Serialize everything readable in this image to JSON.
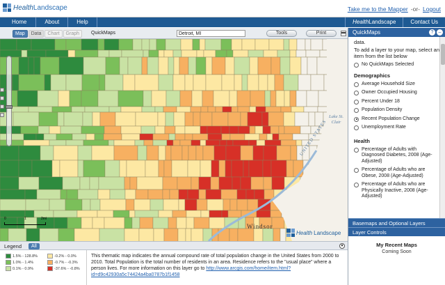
{
  "header": {
    "logo_a": "Health",
    "logo_b": "Landscape",
    "link_mapper": "Take me to the Mapper",
    "sep": "-or-",
    "link_logout": "Logout"
  },
  "nav": {
    "home": "Home",
    "about": "About",
    "help": "Help",
    "brand_a": "Health",
    "brand_b": "Landscape",
    "contact": "Contact Us"
  },
  "toolbar": {
    "tab_map": "Map",
    "tab_data": "Data",
    "tab_chart": "Chart",
    "tab_graph": "Graph",
    "quickmaps_label": "QuickMaps",
    "location_value": "Detroit, MI",
    "tools": "Tools",
    "print": "Print"
  },
  "map": {
    "city": "Windsor",
    "lake_1": "Lake St.",
    "lake_2": "Clair",
    "states": "UNITED STATES",
    "scale_0": "0",
    "scale_1": "1",
    "scale_2": "2mi",
    "watermark_a": "Health",
    "watermark_b": "Landscape",
    "colors": {
      "dark_green": "#2e8b3e",
      "green": "#7bbf5a",
      "light_green": "#c9e2a4",
      "light_yellow": "#fde8a3",
      "orange": "#f7b061",
      "red": "#d73027",
      "road": "#f4f1ea"
    }
  },
  "sidebar": {
    "title": "QuickMaps",
    "intro_top": "data.",
    "intro": "To add a layer to your map, select an item from the list below",
    "none_option": "No QuickMaps Selected",
    "demographics_title": "Demographics",
    "demographics": [
      {
        "label": "Average Household Size",
        "selected": false
      },
      {
        "label": "Owner Occupied Housing",
        "selected": false
      },
      {
        "label": "Percent Under 18",
        "selected": false
      },
      {
        "label": "Population Density",
        "selected": false
      },
      {
        "label": "Recent Population Change",
        "selected": true
      },
      {
        "label": "Unemployment Rate",
        "selected": false
      }
    ],
    "health_title": "Health",
    "health": [
      {
        "label": "Percentage of Adults with Diagnosed Diabetes, 2008 (Age-Adjusted)"
      },
      {
        "label": "Percentage of Adults who are Obese, 2008 (Age-Adjusted)"
      },
      {
        "label": "Percentage of Adults who are Physically Inactive, 2008 (Age-Adjusted)"
      }
    ],
    "basemaps": "Basemaps and Optional Layers",
    "layer_controls": "Layer Controls"
  },
  "legend": {
    "label": "Legend",
    "all": "All",
    "items": [
      {
        "text": "1.5% - 128.8%",
        "color": "#2e8b3e"
      },
      {
        "text": "-0.2% - 0.0%",
        "color": "#fde8a3"
      },
      {
        "text": "1.0% - 1.4%",
        "color": "#7bbf5a"
      },
      {
        "text": "-0.7% - -0.3%",
        "color": "#f7b061"
      },
      {
        "text": "0.1% - 0.9%",
        "color": "#c9e2a4"
      },
      {
        "text": "-37.6% - -0.8%",
        "color": "#d73027"
      }
    ]
  },
  "description": {
    "text": "This thematic map indicates the annual compound rate of total population change in the United States from 2000 to 2010. Total Population is the total number of residents in an area. Residence refers to the \"usual place\" where a person lives. For more information on this layer go to",
    "link": "http://www.arcgis.com/home/item.html?id=d9c42930a5c74424a4ba0787b1f1458"
  },
  "recent": {
    "title": "My Recent Maps",
    "status": "Coming Soon"
  }
}
